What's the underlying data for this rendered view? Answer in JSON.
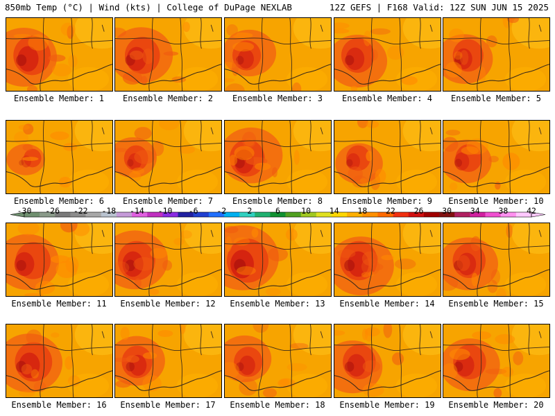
{
  "header": {
    "left": "850mb Temp (°C) | Wind (kts) | College of DuPage NEXLAB",
    "right": "12Z GEFS | F168 Valid: 12Z SUN JUN 15 2025"
  },
  "members": [
    {
      "label": "Ensemble Member: 1",
      "heat": 0.85
    },
    {
      "label": "Ensemble Member: 2",
      "heat": 0.8
    },
    {
      "label": "Ensemble Member: 3",
      "heat": 0.65
    },
    {
      "label": "Ensemble Member: 4",
      "heat": 0.75
    },
    {
      "label": "Ensemble Member: 5",
      "heat": 0.7
    },
    {
      "label": "Ensemble Member: 6",
      "heat": 0.4
    },
    {
      "label": "Ensemble Member: 7",
      "heat": 0.55
    },
    {
      "label": "Ensemble Member: 8",
      "heat": 0.8
    },
    {
      "label": "Ensemble Member: 9",
      "heat": 0.55
    },
    {
      "label": "Ensemble Member: 10",
      "heat": 0.6
    },
    {
      "label": "Ensemble Member: 11",
      "heat": 0.8
    },
    {
      "label": "Ensemble Member: 12",
      "heat": 0.85
    },
    {
      "label": "Ensemble Member: 13",
      "heat": 0.95
    },
    {
      "label": "Ensemble Member: 14",
      "heat": 0.85
    },
    {
      "label": "Ensemble Member: 15",
      "heat": 0.75
    },
    {
      "label": "Ensemble Member: 16",
      "heat": 0.85
    },
    {
      "label": "Ensemble Member: 17",
      "heat": 0.7
    },
    {
      "label": "Ensemble Member: 18",
      "heat": 0.65
    },
    {
      "label": "Ensemble Member: 19",
      "heat": 0.75
    },
    {
      "label": "Ensemble Member: 20",
      "heat": 0.75
    }
  ],
  "colorbar": {
    "labels": [
      "-30",
      "-26",
      "-22",
      "-18",
      "-14",
      "-10",
      "-6",
      "-2",
      "2",
      "6",
      "10",
      "14",
      "18",
      "22",
      "26",
      "30",
      "34",
      "38",
      "42"
    ],
    "colors": [
      "#6f8f6f",
      "#8a9a8a",
      "#7a7a7a",
      "#8c8c8c",
      "#a8a8a8",
      "#b9c3cf",
      "#c59ad8",
      "#e060e0",
      "#c030c0",
      "#8a2be2",
      "#2020a0",
      "#2040d0",
      "#2070ff",
      "#00b0f0",
      "#30d0c0",
      "#20b070",
      "#109030",
      "#50a020",
      "#a0c820",
      "#e0e020",
      "#ffd700",
      "#ffb000",
      "#ff9000",
      "#ff6a00",
      "#f03010",
      "#d01010",
      "#a00000",
      "#801010",
      "#b02060",
      "#d020a0",
      "#f050d0",
      "#ff90f0",
      "#ffc8ff"
    ]
  }
}
